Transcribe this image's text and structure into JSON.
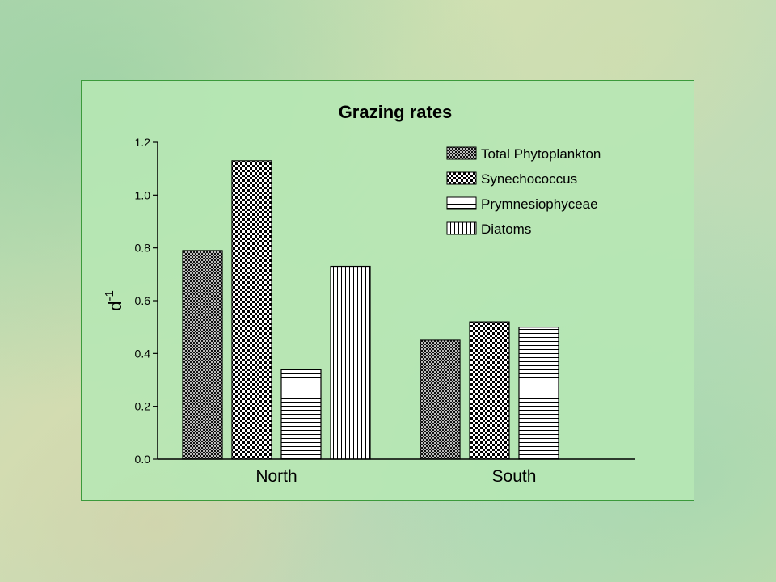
{
  "chart_data": {
    "type": "bar",
    "title": "Grazing rates",
    "xlabel": "",
    "ylabel": "d",
    "ylabel_superscript": "-1",
    "categories": [
      "North",
      "South"
    ],
    "ylim": [
      0,
      1.2
    ],
    "yticks": [
      "0.0",
      "0.2",
      "0.4",
      "0.6",
      "0.8",
      "1.0",
      "1.2"
    ],
    "grid": false,
    "legend_position": "top-right",
    "series": [
      {
        "name": "Total Phytoplankton",
        "pattern": "crosshatch-fine",
        "values": [
          0.79,
          0.45
        ]
      },
      {
        "name": "Synechococcus",
        "pattern": "checker",
        "values": [
          1.13,
          0.52
        ]
      },
      {
        "name": "Prymnesiophyceae",
        "pattern": "horizontal-lines",
        "values": [
          0.34,
          0.5
        ]
      },
      {
        "name": "Diatoms",
        "pattern": "vertical-lines",
        "values": [
          0.73,
          null
        ]
      }
    ]
  },
  "colors": {
    "panel_bg": "#b6e7b4",
    "panel_border": "#3b9a3b",
    "bar_fill": "#ffffff",
    "ink": "#000000"
  }
}
